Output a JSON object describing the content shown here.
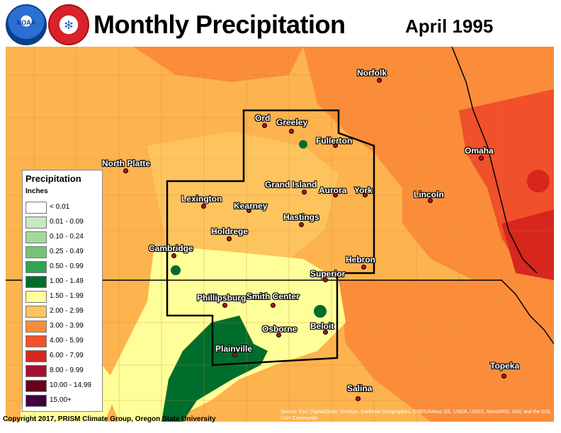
{
  "header": {
    "title": "Monthly Precipitation",
    "period": "April 1995",
    "logos": [
      {
        "name": "noaa-logo",
        "text": "NOAA"
      },
      {
        "name": "nws-logo",
        "text": "NATIONAL WEATHER SERVICE"
      }
    ]
  },
  "legend": {
    "title": "Precipitation",
    "units": "Inches",
    "classes": [
      {
        "label": "< 0.01",
        "color": "#ffffff"
      },
      {
        "label": "0.01 - 0.09",
        "color": "#c7e9c0"
      },
      {
        "label": "0.10 - 0.24",
        "color": "#a1d99b"
      },
      {
        "label": "0.25 - 0.49",
        "color": "#74c476"
      },
      {
        "label": "0.50 - 0.99",
        "color": "#31a354"
      },
      {
        "label": "1.00 - 1.49",
        "color": "#006d2c"
      },
      {
        "label": "1.50 - 1.99",
        "color": "#ffff99"
      },
      {
        "label": "2.00 - 2.99",
        "color": "#fdc45e"
      },
      {
        "label": "3.00 - 3.99",
        "color": "#fb8d3a"
      },
      {
        "label": "4.00 - 5.99",
        "color": "#f0502a"
      },
      {
        "label": "6.00 - 7.99",
        "color": "#d7261e"
      },
      {
        "label": "8.00 - 9.99",
        "color": "#a50f32"
      },
      {
        "label": "10.00 - 14.99",
        "color": "#67001f"
      },
      {
        "label": "15.00+",
        "color": "#3f0042"
      }
    ]
  },
  "cities": {
    "norfolk": "Norfolk",
    "ord": "Ord",
    "greeley": "Greeley",
    "fullerton": "Fullerton",
    "north_platte": "North Platte",
    "omaha": "Omaha",
    "grand_island": "Grand Island",
    "aurora": "Aurora",
    "york": "York",
    "lexington": "Lexington",
    "kearney": "Kearney",
    "lincoln": "Lincoln",
    "hastings": "Hastings",
    "holdrege": "Holdrege",
    "cambridge": "Cambridge",
    "hebron": "Hebron",
    "superior": "Superior",
    "phillipsburg": "Phillipsburg",
    "smith_center": "Smith Center",
    "osborne": "Osborne",
    "beloit": "Beloit",
    "plainville": "Plainville",
    "topeka": "Topeka",
    "salina": "Salina"
  },
  "footer": {
    "copyright": "Copyright 2017, PRISM Climate Group, Oregon State University",
    "source": "Source: Esri, DigitalGlobe, GeoEye, Earthstar Geographics, CNES/Airbus DS, USDA, USGS, AeroGRID, IGN, and the GIS User Community"
  }
}
